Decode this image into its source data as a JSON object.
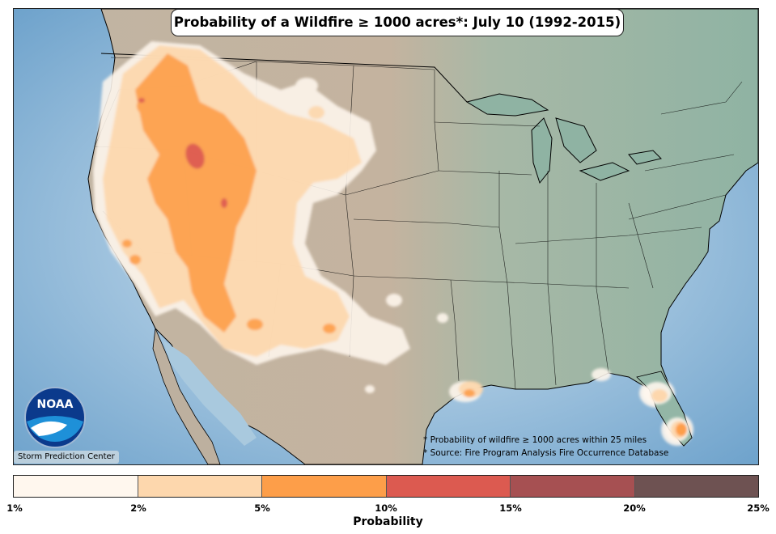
{
  "title": "Probability of a Wildfire ≥ 1000 acres*: July 10 (1992-2015)",
  "notes": [
    "* Probability of wildfire ≥ 1000 acres within 25 miles",
    "* Source: Fire Program Analysis Fire Occurrence Database"
  ],
  "credit": "Storm Prediction Center",
  "logo_text": "NOAA",
  "colorbar": {
    "label": "Probability",
    "ticks": [
      "1%",
      "2%",
      "5%",
      "10%",
      "15%",
      "20%",
      "25%"
    ],
    "colors": [
      "#fff7ee",
      "#fdd7ad",
      "#fd9e49",
      "#dc5a50",
      "#a65052",
      "#6e5252"
    ]
  },
  "map": {
    "ocean_color": "#8ab7d6",
    "land_color": "#b9ae9d",
    "east_land_color": "#93b6a6"
  }
}
